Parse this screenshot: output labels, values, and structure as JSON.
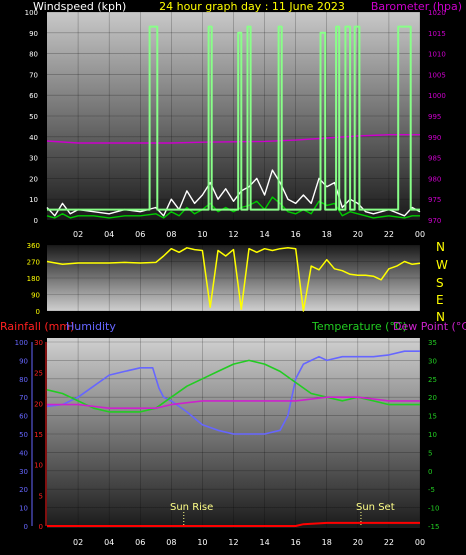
{
  "header": {
    "left": "Windspeed (kph)",
    "center": "24 hour graph day : 11 June 2023",
    "right": "Barometer (hpa)"
  },
  "colors": {
    "bg": "#000000",
    "wind_title": "#ffffff",
    "center_title": "#ffff00",
    "baro_title": "#cc00cc",
    "wind_gust": "#ffffff",
    "wind_avg": "#00cc00",
    "wind_max": "#88ff88",
    "baro": "#cc00cc",
    "direction": "#ffff00",
    "rain_title": "#ff2020",
    "humidity": "#6666ff",
    "temperature": "#22cc22",
    "dewpoint": "#cc22cc",
    "rain": "#ff0000",
    "sun": "#ffff88"
  },
  "x_ticks": [
    "02",
    "04",
    "06",
    "08",
    "10",
    "12",
    "14",
    "16",
    "18",
    "20",
    "22",
    "00"
  ],
  "compass": [
    "N",
    "W",
    "S",
    "E",
    "N"
  ],
  "bottom_header": {
    "rain": "Rainfall (mm)",
    "humidity": "Humidity",
    "temperature": "Temperature (°C)",
    "dewpoint": "Dew Point (°C)"
  },
  "sun": {
    "rise": "Sun Rise",
    "set": "Sun Set",
    "rise_hour": 8.8,
    "set_hour": 20.2
  },
  "chart_data": [
    {
      "type": "line",
      "title": "24 hour graph day : 11 June 2023",
      "xlabel": "",
      "ylabel": "Windspeed (kph)",
      "y2label": "Barometer (hpa)",
      "ylim": [
        0,
        100
      ],
      "y2lim": [
        970,
        1020
      ],
      "left_ticks": [
        0,
        10,
        20,
        30,
        40,
        50,
        60,
        70,
        80,
        90,
        100
      ],
      "right_ticks": [
        970,
        975,
        980,
        985,
        990,
        995,
        1000,
        1005,
        1010,
        1015,
        1020
      ],
      "series": [
        {
          "axis": "right",
          "color": "#cc00cc",
          "x": [
            0,
            2,
            4,
            6,
            8,
            10,
            12,
            14,
            16,
            18,
            20,
            22,
            24
          ],
          "y": [
            989,
            988.5,
            988.5,
            988.5,
            988.5,
            988.7,
            988.8,
            988.9,
            989.2,
            989.7,
            990.2,
            990.5,
            990.5
          ]
        },
        {
          "axis": "left",
          "color": "#ffffff",
          "x": [
            0,
            0.5,
            1,
            1.5,
            2,
            3,
            4,
            5,
            6,
            7,
            7.5,
            8,
            8.5,
            9,
            9.5,
            10,
            10.5,
            11,
            11.5,
            12,
            12.5,
            13,
            13.5,
            14,
            14.5,
            15,
            15.5,
            16,
            16.5,
            17,
            17.5,
            18,
            18.5,
            19,
            19.5,
            20,
            20.5,
            21,
            22,
            23,
            23.5,
            24
          ],
          "y": [
            6,
            2,
            8,
            3,
            5,
            4,
            3,
            5,
            4,
            6,
            2,
            10,
            5,
            14,
            8,
            12,
            18,
            10,
            15,
            9,
            14,
            16,
            20,
            12,
            24,
            18,
            10,
            8,
            12,
            8,
            20,
            16,
            18,
            6,
            10,
            8,
            4,
            3,
            5,
            2,
            6,
            4
          ]
        },
        {
          "axis": "left",
          "color": "#00cc00",
          "x": [
            0,
            0.5,
            1,
            1.5,
            2,
            3,
            4,
            5,
            6,
            7,
            7.5,
            8,
            8.5,
            9,
            9.5,
            10,
            10.5,
            11,
            11.5,
            12,
            12.5,
            13,
            13.5,
            14,
            14.5,
            15,
            15.5,
            16,
            16.5,
            17,
            17.5,
            18,
            18.5,
            19,
            19.5,
            20,
            20.5,
            21,
            22,
            23,
            23.5,
            24
          ],
          "y": [
            2,
            1,
            3,
            1,
            2,
            2,
            1,
            2,
            2,
            3,
            1,
            4,
            2,
            6,
            3,
            5,
            8,
            4,
            6,
            4,
            6,
            7,
            9,
            5,
            11,
            8,
            4,
            3,
            5,
            3,
            9,
            7,
            8,
            2,
            4,
            3,
            2,
            1,
            2,
            1,
            2,
            2
          ]
        },
        {
          "axis": "left",
          "color": "#88ff88",
          "x": [
            0,
            6.6,
            6.6,
            7.1,
            7.1,
            10.4,
            10.4,
            10.6,
            10.6,
            12.3,
            12.3,
            12.5,
            12.5,
            12.9,
            12.9,
            13.1,
            13.1,
            14.9,
            14.9,
            15.1,
            15.1,
            17.6,
            17.6,
            17.9,
            17.9,
            18.6,
            18.6,
            18.8,
            18.8,
            19.2,
            19.2,
            19.5,
            19.5,
            19.8,
            19.8,
            20.1,
            20.1,
            22.6,
            22.6,
            23.4,
            23.4,
            24
          ],
          "y": [
            5,
            5,
            93,
            93,
            5,
            5,
            93,
            93,
            5,
            5,
            90,
            90,
            5,
            5,
            93,
            93,
            5,
            5,
            93,
            93,
            5,
            5,
            90,
            90,
            5,
            5,
            93,
            93,
            5,
            5,
            93,
            93,
            5,
            5,
            93,
            93,
            5,
            5,
            93,
            93,
            5,
            5
          ]
        }
      ]
    },
    {
      "type": "line",
      "ylabel": "Wind direction",
      "ylim": [
        0,
        360
      ],
      "left_ticks": [
        0,
        90,
        180,
        270,
        360
      ],
      "series": [
        {
          "color": "#ffff00",
          "x": [
            0,
            1,
            2,
            3,
            4,
            5,
            6,
            7,
            7.5,
            8,
            8.5,
            9,
            9.5,
            10,
            10.5,
            11,
            11.5,
            12,
            12.5,
            13,
            13.5,
            14,
            14.5,
            15,
            15.5,
            16,
            16.5,
            17,
            17.5,
            18,
            18.5,
            19,
            19.5,
            20,
            20.5,
            21,
            21.5,
            22,
            22.5,
            23,
            23.5,
            24
          ],
          "y": [
            270,
            255,
            262,
            262,
            262,
            265,
            262,
            265,
            300,
            340,
            320,
            345,
            335,
            330,
            20,
            330,
            300,
            335,
            10,
            340,
            320,
            340,
            330,
            340,
            345,
            340,
            0,
            245,
            225,
            280,
            230,
            220,
            200,
            195,
            195,
            190,
            170,
            230,
            245,
            270,
            255,
            260
          ]
        }
      ]
    },
    {
      "type": "line",
      "ylabel": "Rainfall (mm) / Humidity",
      "y2label": "Temperature (°C) / Dew Point (°C)",
      "ylim": [
        0,
        100
      ],
      "rain_lim": [
        0,
        30
      ],
      "y2lim": [
        -15,
        35
      ],
      "hum_ticks": [
        0,
        10,
        20,
        30,
        40,
        50,
        60,
        70,
        80,
        90,
        100
      ],
      "rain_ticks": [
        0,
        5,
        10,
        15,
        20,
        25,
        30
      ],
      "right_ticks": [
        -15,
        -10,
        -5,
        0,
        5,
        10,
        15,
        20,
        25,
        30,
        35
      ],
      "series": [
        {
          "name": "Humidity",
          "axis": "humidity",
          "color": "#6666ff",
          "x": [
            0,
            1,
            2,
            3,
            4,
            5,
            6,
            6.8,
            7.2,
            7.5,
            8,
            9,
            10,
            11,
            12,
            13,
            14,
            15,
            15.5,
            16,
            16.5,
            17,
            17.5,
            18,
            19,
            20,
            21,
            22,
            23,
            24
          ],
          "y": [
            65,
            66,
            70,
            76,
            82,
            84,
            86,
            86,
            75,
            70,
            68,
            62,
            55,
            52,
            50,
            50,
            50,
            52,
            60,
            80,
            88,
            90,
            92,
            90,
            92,
            92,
            92,
            93,
            95,
            95
          ]
        },
        {
          "name": "Temperature",
          "axis": "temp",
          "color": "#22cc22",
          "x": [
            0,
            1,
            2,
            3,
            4,
            5,
            6,
            7,
            8,
            9,
            10,
            11,
            12,
            13,
            14,
            15,
            16,
            17,
            18,
            19,
            20,
            21,
            22,
            23,
            24
          ],
          "y": [
            22,
            21,
            19,
            17,
            16,
            16,
            16,
            17,
            20,
            23,
            25,
            27,
            29,
            30,
            29,
            27,
            24,
            21,
            20,
            19,
            20,
            19,
            18,
            18,
            18
          ]
        },
        {
          "name": "Dew Point",
          "axis": "temp",
          "color": "#cc22cc",
          "x": [
            0,
            2,
            4,
            6,
            7,
            8,
            10,
            12,
            14,
            16,
            18,
            20,
            22,
            24
          ],
          "y": [
            18,
            18,
            17,
            17,
            17,
            18,
            19,
            19,
            19,
            19,
            20,
            20,
            19,
            19
          ]
        },
        {
          "name": "Rainfall",
          "axis": "rain",
          "color": "#ff0000",
          "x": [
            0,
            4,
            8,
            12,
            16,
            16.5,
            18,
            20,
            22,
            24
          ],
          "y": [
            0,
            0,
            0,
            0,
            0,
            0.3,
            0.5,
            0.5,
            0.5,
            0.5
          ]
        }
      ]
    }
  ]
}
